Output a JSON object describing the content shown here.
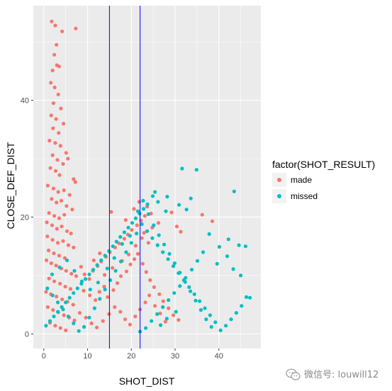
{
  "chart_data": {
    "type": "scatter",
    "title": "",
    "xlabel": "SHOT_DIST",
    "ylabel": "CLOSE_DEF_DIST",
    "xlim": [
      -2.4,
      49.6
    ],
    "ylim": [
      -2.5,
      56.2
    ],
    "x_ticks": [
      0,
      10,
      20,
      30,
      40
    ],
    "y_ticks": [
      0,
      20,
      40
    ],
    "grid": true,
    "legend": {
      "title": "factor(SHOT_RESULT)",
      "placement": "right",
      "entries": [
        "made",
        "missed"
      ]
    },
    "colors": {
      "made": "#F8766D",
      "missed": "#00BFC4",
      "vline": "#0000FF",
      "panel": "#EBEBEB",
      "grid": "#FFFFFF"
    },
    "vlines": [
      15,
      22
    ],
    "series": [
      {
        "name": "made",
        "points": [
          [
            1.8,
            53.5
          ],
          [
            2.6,
            52.8
          ],
          [
            4.2,
            51.8
          ],
          [
            7.3,
            52.3
          ],
          [
            2.9,
            49.5
          ],
          [
            2.4,
            47.8
          ],
          [
            3.0,
            46.0
          ],
          [
            2.0,
            45.1
          ],
          [
            3.5,
            45.8
          ],
          [
            1.6,
            43.0
          ],
          [
            2.5,
            42.2
          ],
          [
            3.3,
            41.0
          ],
          [
            2.2,
            39.5
          ],
          [
            3.9,
            38.6
          ],
          [
            1.7,
            37.4
          ],
          [
            2.8,
            36.8
          ],
          [
            4.5,
            36.0
          ],
          [
            2.1,
            35.2
          ],
          [
            3.4,
            34.4
          ],
          [
            1.3,
            33.1
          ],
          [
            2.6,
            32.7
          ],
          [
            3.8,
            32.2
          ],
          [
            5.1,
            31.0
          ],
          [
            2.0,
            30.6
          ],
          [
            3.1,
            29.8
          ],
          [
            4.4,
            29.1
          ],
          [
            5.5,
            30.0
          ],
          [
            1.5,
            28.4
          ],
          [
            2.7,
            27.9
          ],
          [
            3.6,
            27.2
          ],
          [
            6.8,
            26.5
          ],
          [
            7.2,
            26.0
          ],
          [
            0.9,
            25.4
          ],
          [
            2.2,
            24.9
          ],
          [
            3.3,
            24.3
          ],
          [
            4.6,
            24.6
          ],
          [
            5.9,
            23.8
          ],
          [
            1.8,
            23.1
          ],
          [
            2.9,
            22.5
          ],
          [
            4.0,
            22.8
          ],
          [
            5.2,
            21.9
          ],
          [
            6.5,
            21.3
          ],
          [
            1.2,
            20.7
          ],
          [
            2.4,
            20.2
          ],
          [
            3.5,
            19.8
          ],
          [
            4.7,
            20.4
          ],
          [
            0.7,
            19.1
          ],
          [
            1.9,
            18.6
          ],
          [
            3.0,
            18.0
          ],
          [
            4.1,
            18.4
          ],
          [
            5.3,
            17.6
          ],
          [
            6.2,
            17.2
          ],
          [
            0.8,
            16.7
          ],
          [
            2.0,
            16.1
          ],
          [
            3.2,
            15.6
          ],
          [
            4.4,
            15.9
          ],
          [
            5.6,
            15.2
          ],
          [
            6.8,
            14.8
          ],
          [
            1.1,
            14.3
          ],
          [
            2.3,
            13.8
          ],
          [
            3.5,
            13.4
          ],
          [
            4.8,
            13.0
          ],
          [
            0.6,
            12.6
          ],
          [
            1.7,
            12.1
          ],
          [
            2.8,
            11.7
          ],
          [
            4.0,
            11.2
          ],
          [
            5.1,
            10.8
          ],
          [
            6.3,
            10.3
          ],
          [
            7.4,
            9.9
          ],
          [
            1.2,
            9.5
          ],
          [
            2.4,
            9.0
          ],
          [
            3.7,
            8.6
          ],
          [
            4.9,
            8.1
          ],
          [
            6.1,
            7.7
          ],
          [
            0.5,
            7.2
          ],
          [
            1.6,
            6.8
          ],
          [
            2.9,
            6.4
          ],
          [
            4.2,
            5.9
          ],
          [
            5.4,
            5.5
          ],
          [
            6.7,
            5.0
          ],
          [
            0.9,
            4.6
          ],
          [
            2.1,
            4.1
          ],
          [
            3.3,
            3.7
          ],
          [
            4.6,
            3.2
          ],
          [
            5.8,
            2.8
          ],
          [
            7.0,
            2.3
          ],
          [
            1.4,
            1.9
          ],
          [
            2.6,
            1.4
          ],
          [
            3.8,
            1.0
          ],
          [
            5.0,
            0.6
          ],
          [
            8.5,
            11.5
          ],
          [
            9.3,
            10.2
          ],
          [
            10.4,
            9.4
          ],
          [
            11.2,
            10.8
          ],
          [
            12.3,
            11.6
          ],
          [
            13.1,
            12.4
          ],
          [
            14.2,
            13.2
          ],
          [
            15.1,
            14.0
          ],
          [
            16.3,
            14.8
          ],
          [
            17.2,
            15.5
          ],
          [
            18.4,
            16.3
          ],
          [
            19.2,
            17.0
          ],
          [
            20.1,
            17.8
          ],
          [
            21.3,
            18.6
          ],
          [
            22.2,
            19.4
          ],
          [
            23.1,
            20.2
          ],
          [
            15.4,
            20.9
          ],
          [
            18.7,
            19.5
          ],
          [
            20.6,
            21.4
          ],
          [
            21.8,
            22.6
          ],
          [
            23.6,
            21.8
          ],
          [
            24.5,
            20.6
          ],
          [
            26.2,
            19.0
          ],
          [
            29.2,
            20.8
          ],
          [
            38.5,
            19.3
          ],
          [
            36.2,
            20.4
          ],
          [
            30.4,
            18.4
          ],
          [
            31.3,
            17.5
          ],
          [
            24.8,
            18.2
          ],
          [
            22.9,
            17.3
          ],
          [
            9.1,
            7.4
          ],
          [
            10.5,
            6.6
          ],
          [
            11.8,
            5.8
          ],
          [
            12.7,
            7.2
          ],
          [
            13.8,
            8.1
          ],
          [
            14.6,
            6.3
          ],
          [
            15.9,
            7.5
          ],
          [
            16.8,
            8.7
          ],
          [
            17.6,
            9.9
          ],
          [
            18.9,
            10.7
          ],
          [
            19.8,
            11.9
          ],
          [
            20.7,
            12.8
          ],
          [
            21.5,
            13.7
          ],
          [
            22.6,
            12.0
          ],
          [
            23.4,
            10.6
          ],
          [
            24.3,
            9.2
          ],
          [
            25.2,
            8.0
          ],
          [
            26.4,
            6.8
          ],
          [
            27.3,
            5.6
          ],
          [
            28.5,
            4.4
          ],
          [
            29.6,
            3.2
          ],
          [
            30.8,
            2.4
          ],
          [
            8.2,
            3.6
          ],
          [
            9.6,
            2.8
          ],
          [
            10.9,
            1.8
          ],
          [
            12.1,
            1.1
          ],
          [
            13.5,
            2.2
          ],
          [
            14.9,
            3.4
          ],
          [
            16.2,
            4.6
          ],
          [
            17.5,
            3.8
          ],
          [
            18.6,
            2.5
          ],
          [
            19.7,
            1.6
          ],
          [
            20.9,
            3.0
          ],
          [
            22.0,
            4.2
          ],
          [
            23.2,
            5.4
          ],
          [
            24.1,
            6.6
          ],
          [
            25.4,
            4.8
          ],
          [
            26.6,
            3.5
          ],
          [
            27.8,
            2.1
          ],
          [
            11.4,
            12.6
          ],
          [
            12.8,
            13.8
          ],
          [
            13.9,
            10.1
          ],
          [
            15.7,
            11.3
          ],
          [
            17.9,
            12.5
          ],
          [
            19.4,
            13.6
          ],
          [
            21.0,
            15.1
          ],
          [
            22.4,
            16.4
          ],
          [
            23.9,
            15.6
          ]
        ]
      },
      {
        "name": "missed",
        "points": [
          [
            31.6,
            28.3
          ],
          [
            34.9,
            28.1
          ],
          [
            25.4,
            24.3
          ],
          [
            28.2,
            23.5
          ],
          [
            33.6,
            23.2
          ],
          [
            43.5,
            24.4
          ],
          [
            30.9,
            22.1
          ],
          [
            32.6,
            21.3
          ],
          [
            27.9,
            21.0
          ],
          [
            26.1,
            22.6
          ],
          [
            24.9,
            23.6
          ],
          [
            23.7,
            22.2
          ],
          [
            22.8,
            21.4
          ],
          [
            21.9,
            20.6
          ],
          [
            21.0,
            19.8
          ],
          [
            20.2,
            19.0
          ],
          [
            19.3,
            18.2
          ],
          [
            18.4,
            17.4
          ],
          [
            17.5,
            16.6
          ],
          [
            16.6,
            15.8
          ],
          [
            15.8,
            15.0
          ],
          [
            14.9,
            14.2
          ],
          [
            14.0,
            13.4
          ],
          [
            13.1,
            12.6
          ],
          [
            12.2,
            11.8
          ],
          [
            11.3,
            11.0
          ],
          [
            10.4,
            10.2
          ],
          [
            9.5,
            9.4
          ],
          [
            8.6,
            8.6
          ],
          [
            7.7,
            7.8
          ],
          [
            6.8,
            7.0
          ],
          [
            5.9,
            6.2
          ],
          [
            5.0,
            5.4
          ],
          [
            4.1,
            4.6
          ],
          [
            3.2,
            3.8
          ],
          [
            2.3,
            3.0
          ],
          [
            1.4,
            2.2
          ],
          [
            0.5,
            1.4
          ],
          [
            42.2,
            16.2
          ],
          [
            44.6,
            15.2
          ],
          [
            46.1,
            15.0
          ],
          [
            37.8,
            17.1
          ],
          [
            40.1,
            14.9
          ],
          [
            41.9,
            13.3
          ],
          [
            39.6,
            12.0
          ],
          [
            43.3,
            11.1
          ],
          [
            45.0,
            10.0
          ],
          [
            36.4,
            14.0
          ],
          [
            35.1,
            12.5
          ],
          [
            33.8,
            11.0
          ],
          [
            32.4,
            9.6
          ],
          [
            31.1,
            8.2
          ],
          [
            29.8,
            7.0
          ],
          [
            28.5,
            5.8
          ],
          [
            27.2,
            4.6
          ],
          [
            25.9,
            3.4
          ],
          [
            24.6,
            2.2
          ],
          [
            23.3,
            1.0
          ],
          [
            22.0,
            0.4
          ],
          [
            46.3,
            6.3
          ],
          [
            47.1,
            6.2
          ],
          [
            45.2,
            4.8
          ],
          [
            44.0,
            3.6
          ],
          [
            42.8,
            2.5
          ],
          [
            41.6,
            1.4
          ],
          [
            40.4,
            0.6
          ],
          [
            39.2,
            2.0
          ],
          [
            38.0,
            3.2
          ],
          [
            36.8,
            4.4
          ],
          [
            35.6,
            5.6
          ],
          [
            34.4,
            6.8
          ],
          [
            33.2,
            8.0
          ],
          [
            32.0,
            9.2
          ],
          [
            30.8,
            10.4
          ],
          [
            29.6,
            11.6
          ],
          [
            28.4,
            12.8
          ],
          [
            27.2,
            14.0
          ],
          [
            26.0,
            15.2
          ],
          [
            24.8,
            16.4
          ],
          [
            23.6,
            17.6
          ],
          [
            22.4,
            18.8
          ],
          [
            21.2,
            17.2
          ],
          [
            20.0,
            15.6
          ],
          [
            18.8,
            14.0
          ],
          [
            17.6,
            12.4
          ],
          [
            16.4,
            10.8
          ],
          [
            15.2,
            9.2
          ],
          [
            14.0,
            7.6
          ],
          [
            12.8,
            6.0
          ],
          [
            11.6,
            4.4
          ],
          [
            10.4,
            2.8
          ],
          [
            9.2,
            1.2
          ],
          [
            8.0,
            0.5
          ],
          [
            6.8,
            1.8
          ],
          [
            5.6,
            3.0
          ],
          [
            4.4,
            4.2
          ],
          [
            3.2,
            5.4
          ],
          [
            2.0,
            6.6
          ],
          [
            0.8,
            7.8
          ],
          [
            1.9,
            10.2
          ],
          [
            3.6,
            11.4
          ],
          [
            5.3,
            12.6
          ],
          [
            7.0,
            10.8
          ],
          [
            8.7,
            9.0
          ],
          [
            10.6,
            7.6
          ],
          [
            12.4,
            8.8
          ],
          [
            14.5,
            11.2
          ],
          [
            16.1,
            13.0
          ],
          [
            17.9,
            15.4
          ],
          [
            19.7,
            16.8
          ],
          [
            21.5,
            21.0
          ],
          [
            22.7,
            22.8
          ],
          [
            23.9,
            20.5
          ],
          [
            25.1,
            18.6
          ],
          [
            26.3,
            16.9
          ],
          [
            27.5,
            15.3
          ],
          [
            28.7,
            13.7
          ],
          [
            29.9,
            12.1
          ],
          [
            31.1,
            10.5
          ],
          [
            32.3,
            8.9
          ],
          [
            33.5,
            7.3
          ],
          [
            34.7,
            5.7
          ],
          [
            35.9,
            4.1
          ],
          [
            37.1,
            2.5
          ],
          [
            38.3,
            1.2
          ],
          [
            30.2,
            3.8
          ],
          [
            28.1,
            2.6
          ],
          [
            26.7,
            1.5
          ]
        ]
      }
    ]
  },
  "watermark": {
    "text": "微信号: louwill12",
    "icon": "wechat-icon"
  }
}
